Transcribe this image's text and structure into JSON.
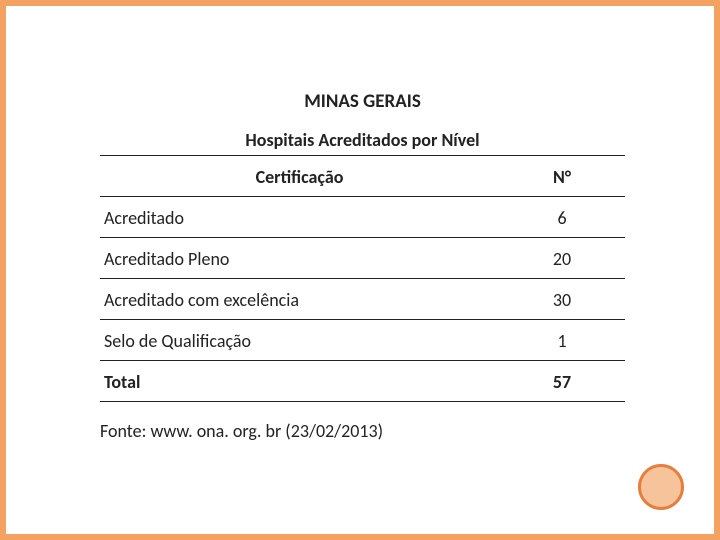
{
  "titles": {
    "main": "MINAS GERAIS",
    "sub": "Hospitais Acreditados por Nível"
  },
  "table": {
    "headers": {
      "cert": "Certificação",
      "num": "N°"
    },
    "rows": [
      {
        "cert": "Acreditado",
        "num": "6"
      },
      {
        "cert": "Acreditado Pleno",
        "num": "20"
      },
      {
        "cert": "Acreditado com excelência",
        "num": "30"
      },
      {
        "cert": "Selo de Qualificação",
        "num": "1"
      }
    ],
    "total": {
      "label": "Total",
      "value": "57"
    }
  },
  "source": "Fonte: www. ona. org. br (23/02/2013)",
  "style": {
    "border_color": "#f4a261",
    "text_color": "#222222",
    "circle_border": "#e37f3f",
    "circle_fill": "#f6c39b",
    "font_size_title": 19,
    "font_size_body": 18
  }
}
